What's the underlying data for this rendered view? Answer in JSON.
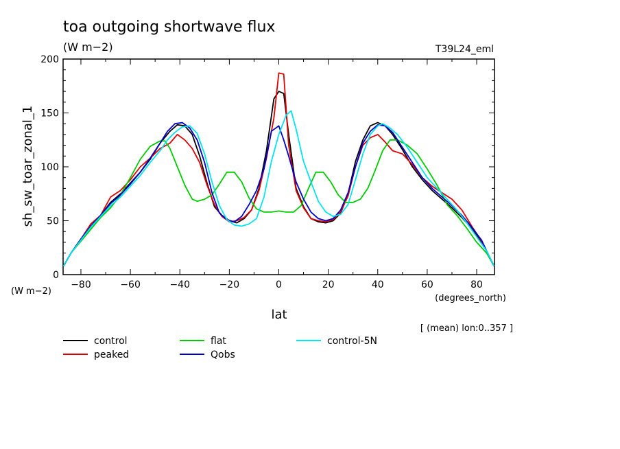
{
  "chart_data": {
    "type": "line",
    "title": "toa outgoing shortwave flux",
    "units": "(W m−2)",
    "run_label": "T39L24_eml",
    "ylabel": "sh_sw_toar_zonal_1",
    "y_units": "(W m−2)",
    "xlabel": "lat",
    "x_units": "(degrees_north)",
    "subset_note": "[ (mean) lon:0..357 ]",
    "xlim": [
      -87.2,
      87.2
    ],
    "ylim": [
      0,
      200
    ],
    "x_ticks": [
      -80,
      -60,
      -40,
      -20,
      0,
      20,
      40,
      60,
      80
    ],
    "x_tick_labels": [
      "−80",
      "−60",
      "−40",
      "−20",
      "0",
      "20",
      "40",
      "60",
      "80"
    ],
    "y_ticks": [
      0,
      50,
      100,
      150,
      200
    ],
    "y_tick_labels": [
      "0",
      "50",
      "100",
      "150",
      "200"
    ],
    "series": [
      {
        "name": "control",
        "color": "#000000",
        "x": [
          -87,
          -84,
          -80,
          -76,
          -72,
          -68,
          -64,
          -60,
          -56,
          -52,
          -48,
          -44,
          -41,
          -38,
          -35,
          -32,
          -29,
          -26,
          -23,
          -20,
          -17,
          -14,
          -11,
          -8,
          -5,
          -2,
          0,
          2,
          4,
          7,
          10,
          13,
          16,
          19,
          22,
          25,
          28,
          31,
          34,
          37,
          40,
          43,
          46,
          50,
          54,
          58,
          62,
          66,
          70,
          74,
          78,
          82,
          84,
          87
        ],
        "y": [
          8,
          20,
          33,
          45,
          55,
          67,
          75,
          85,
          95,
          107,
          122,
          133,
          139,
          138,
          130,
          110,
          85,
          63,
          55,
          50,
          48,
          52,
          60,
          80,
          115,
          163,
          170,
          168,
          130,
          80,
          63,
          52,
          49,
          48,
          50,
          57,
          75,
          105,
          125,
          138,
          141,
          138,
          130,
          116,
          100,
          88,
          78,
          70,
          62,
          53,
          43,
          30,
          22,
          8
        ]
      },
      {
        "name": "peaked",
        "color": "#e00000",
        "x": [
          -87,
          -84,
          -80,
          -76,
          -72,
          -68,
          -64,
          -60,
          -56,
          -52,
          -48,
          -44,
          -41,
          -38,
          -35,
          -32,
          -29,
          -26,
          -23,
          -20,
          -17,
          -14,
          -11,
          -8,
          -5,
          -2,
          0,
          2,
          4,
          7,
          10,
          13,
          16,
          19,
          22,
          25,
          28,
          31,
          34,
          37,
          40,
          43,
          46,
          50,
          54,
          58,
          62,
          66,
          70,
          74,
          78,
          82,
          84,
          87
        ],
        "y": [
          8,
          20,
          33,
          47,
          55,
          72,
          78,
          88,
          100,
          108,
          117,
          122,
          130,
          125,
          117,
          104,
          83,
          65,
          54,
          49,
          50,
          53,
          60,
          78,
          108,
          145,
          187,
          186,
          120,
          78,
          62,
          52,
          50,
          49,
          51,
          58,
          73,
          100,
          120,
          127,
          130,
          123,
          115,
          112,
          102,
          90,
          82,
          76,
          70,
          60,
          45,
          31,
          22,
          8
        ]
      },
      {
        "name": "flat",
        "color": "#00cc00",
        "x": [
          -87,
          -84,
          -80,
          -76,
          -72,
          -68,
          -64,
          -60,
          -56,
          -52,
          -48,
          -46,
          -44,
          -41,
          -38,
          -35,
          -33,
          -30,
          -27,
          -24,
          -21,
          -18,
          -15,
          -12,
          -9,
          -6,
          -3,
          0,
          3,
          6,
          9,
          12,
          15,
          18,
          21,
          24,
          27,
          30,
          33,
          36,
          39,
          42,
          45,
          48,
          52,
          56,
          60,
          64,
          68,
          72,
          76,
          80,
          84,
          87
        ],
        "y": [
          8,
          20,
          31,
          42,
          53,
          62,
          74,
          90,
          107,
          119,
          124,
          124,
          117,
          100,
          83,
          70,
          68,
          70,
          74,
          84,
          95,
          95,
          86,
          71,
          61,
          58,
          58,
          59,
          58,
          58,
          64,
          80,
          95,
          95,
          86,
          74,
          67,
          67,
          70,
          80,
          97,
          115,
          125,
          125,
          120,
          112,
          98,
          83,
          65,
          55,
          43,
          30,
          20,
          8
        ]
      },
      {
        "name": "Qobs",
        "color": "#0000cc",
        "x": [
          -87,
          -84,
          -80,
          -76,
          -72,
          -68,
          -64,
          -60,
          -56,
          -52,
          -48,
          -45,
          -42,
          -39,
          -36,
          -33,
          -30,
          -27,
          -24,
          -21,
          -18,
          -15,
          -12,
          -9,
          -6,
          -3,
          0,
          2,
          4,
          7,
          10,
          13,
          16,
          19,
          22,
          25,
          28,
          31,
          34,
          37,
          40,
          43,
          46,
          50,
          54,
          58,
          62,
          66,
          70,
          74,
          78,
          82,
          84,
          87
        ],
        "y": [
          8,
          20,
          33,
          45,
          55,
          66,
          74,
          84,
          95,
          108,
          122,
          133,
          140,
          141,
          136,
          125,
          104,
          76,
          57,
          51,
          49,
          54,
          65,
          78,
          98,
          133,
          138,
          125,
          110,
          86,
          70,
          58,
          52,
          50,
          52,
          60,
          76,
          100,
          122,
          133,
          139,
          138,
          132,
          118,
          104,
          90,
          80,
          72,
          64,
          55,
          44,
          32,
          22,
          8
        ]
      },
      {
        "name": "control-5N",
        "color": "#00e5ee",
        "x": [
          -87,
          -84,
          -80,
          -76,
          -72,
          -68,
          -64,
          -60,
          -56,
          -52,
          -48,
          -45,
          -42,
          -39,
          -36,
          -33,
          -30,
          -27,
          -24,
          -21,
          -18,
          -15,
          -12,
          -9,
          -6,
          -3,
          0,
          3,
          5,
          7,
          10,
          13,
          16,
          19,
          22,
          25,
          28,
          31,
          34,
          37,
          40,
          42,
          45,
          48,
          52,
          56,
          60,
          64,
          68,
          72,
          76,
          80,
          84,
          87
        ],
        "y": [
          8,
          20,
          32,
          44,
          54,
          64,
          72,
          82,
          92,
          104,
          115,
          125,
          132,
          137,
          138,
          131,
          112,
          86,
          64,
          51,
          46,
          45,
          47,
          52,
          72,
          105,
          130,
          148,
          152,
          135,
          105,
          86,
          68,
          58,
          54,
          56,
          65,
          88,
          112,
          130,
          138,
          140,
          136,
          130,
          118,
          104,
          90,
          80,
          70,
          60,
          48,
          35,
          22,
          8
        ]
      }
    ],
    "legend": [
      {
        "name": "control",
        "color": "#000000"
      },
      {
        "name": "peaked",
        "color": "#e00000"
      },
      {
        "name": "flat",
        "color": "#00cc00"
      },
      {
        "name": "Qobs",
        "color": "#0000cc"
      },
      {
        "name": "control-5N",
        "color": "#00e5ee"
      }
    ]
  }
}
